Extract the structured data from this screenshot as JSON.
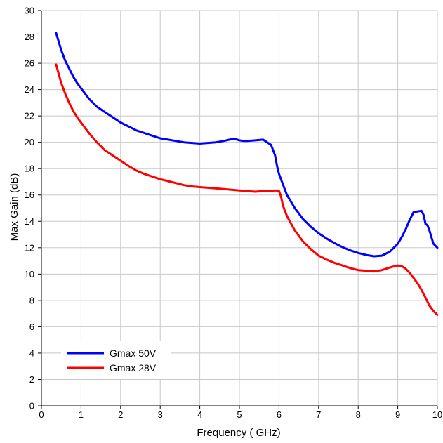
{
  "chart_data": {
    "type": "line",
    "xlabel": "Frequency ( GHz)",
    "ylabel": "Max Gain (dB)",
    "xlim": [
      0,
      10
    ],
    "ylim": [
      0,
      30
    ],
    "x_ticks": [
      "0",
      "1",
      "2",
      "3",
      "4",
      "5",
      "6",
      "7",
      "8",
      "9",
      "10"
    ],
    "y_ticks": [
      "0",
      "2",
      "4",
      "6",
      "8",
      "10",
      "12",
      "14",
      "16",
      "18",
      "20",
      "22",
      "24",
      "26",
      "28",
      "30"
    ],
    "grid": true,
    "legend_position": "bottom-left",
    "series": [
      {
        "name": "Gmax 50V",
        "color": "#0000ff",
        "x": [
          0.37,
          0.5,
          0.6,
          0.7,
          0.8,
          0.9,
          1.0,
          1.2,
          1.4,
          1.6,
          1.8,
          2.0,
          2.2,
          2.4,
          2.6,
          2.8,
          3.0,
          3.2,
          3.4,
          3.6,
          3.8,
          4.0,
          4.2,
          4.4,
          4.6,
          4.75,
          4.85,
          4.95,
          5.0,
          5.1,
          5.2,
          5.4,
          5.6,
          5.8,
          5.9,
          5.95,
          6.0,
          6.1,
          6.2,
          6.4,
          6.6,
          6.8,
          7.0,
          7.2,
          7.4,
          7.6,
          7.8,
          8.0,
          8.2,
          8.4,
          8.6,
          8.8,
          9.0,
          9.1,
          9.2,
          9.3,
          9.4,
          9.5,
          9.6,
          9.65,
          9.7,
          9.75,
          9.8,
          9.85,
          9.9,
          10.0
        ],
        "y": [
          28.3,
          27.0,
          26.2,
          25.6,
          25.0,
          24.5,
          24.1,
          23.3,
          22.7,
          22.3,
          21.9,
          21.5,
          21.2,
          20.9,
          20.7,
          20.5,
          20.3,
          20.2,
          20.1,
          20.0,
          19.95,
          19.9,
          19.95,
          20.0,
          20.1,
          20.2,
          20.25,
          20.2,
          20.15,
          20.1,
          20.1,
          20.15,
          20.2,
          19.8,
          19.0,
          18.2,
          17.6,
          16.8,
          16.0,
          15.0,
          14.2,
          13.6,
          13.1,
          12.7,
          12.35,
          12.05,
          11.8,
          11.6,
          11.45,
          11.35,
          11.4,
          11.7,
          12.3,
          12.8,
          13.4,
          14.1,
          14.7,
          14.75,
          14.8,
          14.5,
          13.8,
          13.7,
          13.3,
          12.8,
          12.3,
          12.0
        ]
      },
      {
        "name": "Gmax 28V",
        "color": "#ff0000",
        "x": [
          0.37,
          0.5,
          0.6,
          0.7,
          0.8,
          0.9,
          1.0,
          1.2,
          1.4,
          1.6,
          1.8,
          2.0,
          2.2,
          2.4,
          2.6,
          2.8,
          3.0,
          3.2,
          3.4,
          3.6,
          3.8,
          4.0,
          4.2,
          4.4,
          4.6,
          4.8,
          5.0,
          5.2,
          5.4,
          5.6,
          5.8,
          5.9,
          6.0,
          6.05,
          6.1,
          6.2,
          6.4,
          6.6,
          6.8,
          7.0,
          7.2,
          7.4,
          7.6,
          7.8,
          8.0,
          8.2,
          8.4,
          8.6,
          8.8,
          9.0,
          9.1,
          9.2,
          9.3,
          9.4,
          9.5,
          9.6,
          9.7,
          9.8,
          9.9,
          10.0
        ],
        "y": [
          25.9,
          24.5,
          23.7,
          23.0,
          22.4,
          21.9,
          21.5,
          20.7,
          20.0,
          19.4,
          19.0,
          18.6,
          18.2,
          17.85,
          17.6,
          17.4,
          17.2,
          17.05,
          16.9,
          16.75,
          16.65,
          16.6,
          16.55,
          16.5,
          16.45,
          16.4,
          16.35,
          16.3,
          16.25,
          16.3,
          16.3,
          16.35,
          16.3,
          15.9,
          15.2,
          14.4,
          13.3,
          12.5,
          11.9,
          11.4,
          11.1,
          10.85,
          10.65,
          10.45,
          10.3,
          10.25,
          10.2,
          10.3,
          10.5,
          10.65,
          10.6,
          10.4,
          10.1,
          9.7,
          9.3,
          8.8,
          8.2,
          7.6,
          7.2,
          6.9
        ]
      }
    ]
  }
}
